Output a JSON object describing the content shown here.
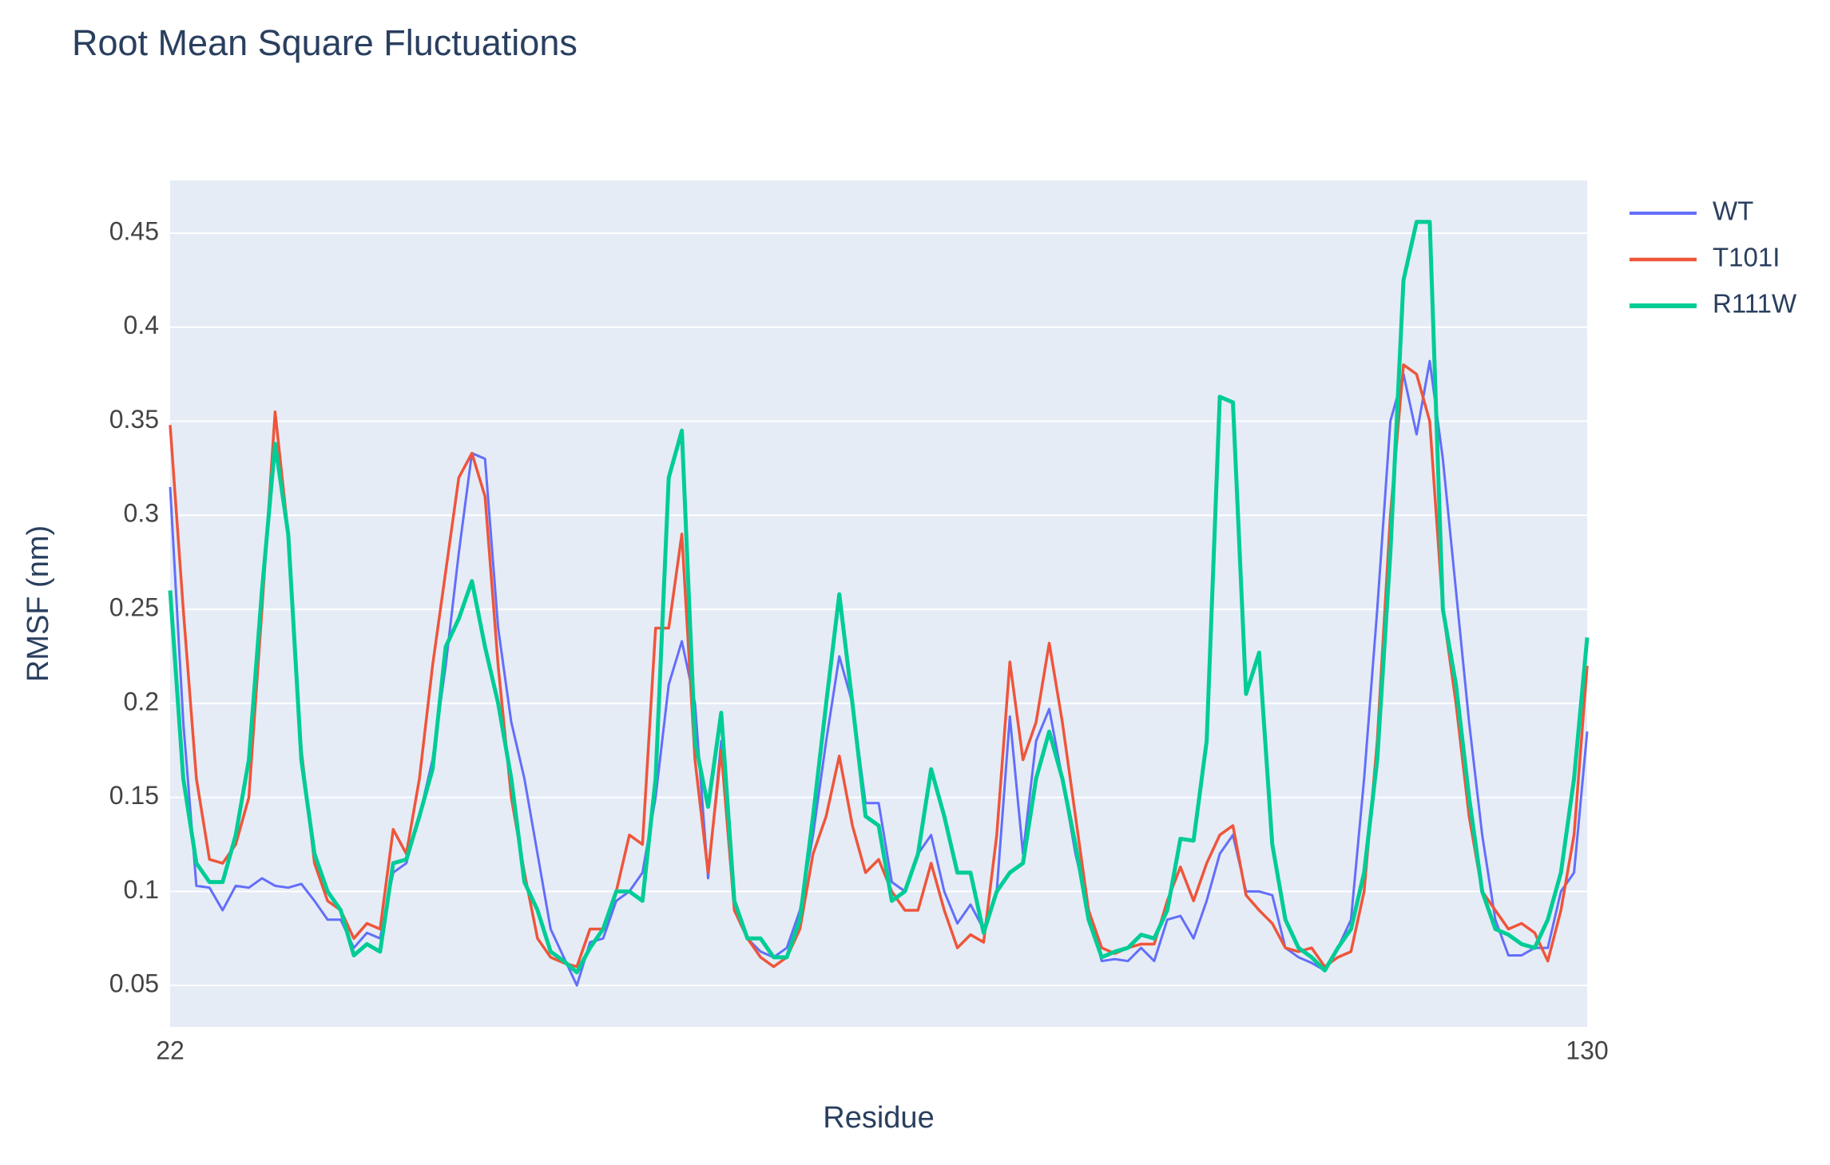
{
  "chart_data": {
    "type": "line",
    "title": "Root Mean Square Fluctuations",
    "x_label": "Residue",
    "y_label": "RMSF (nm)",
    "x": [
      22,
      23,
      24,
      25,
      26,
      27,
      28,
      29,
      30,
      31,
      32,
      33,
      34,
      35,
      36,
      37,
      38,
      39,
      40,
      41,
      42,
      43,
      44,
      45,
      46,
      47,
      48,
      49,
      50,
      51,
      52,
      53,
      54,
      55,
      56,
      57,
      58,
      59,
      60,
      61,
      62,
      63,
      64,
      65,
      66,
      67,
      68,
      69,
      70,
      71,
      72,
      73,
      74,
      75,
      76,
      77,
      78,
      79,
      80,
      81,
      82,
      83,
      84,
      85,
      86,
      87,
      88,
      89,
      90,
      91,
      92,
      93,
      94,
      95,
      96,
      97,
      98,
      99,
      100,
      101,
      102,
      103,
      104,
      105,
      106,
      107,
      108,
      109,
      110,
      111,
      112,
      113,
      114,
      115,
      116,
      117,
      118,
      119,
      120,
      121,
      122,
      123,
      124,
      125,
      126,
      127,
      128,
      129,
      130
    ],
    "series": [
      {
        "name": "WT",
        "color": "#636efa",
        "width": 3,
        "values": [
          0.315,
          0.19,
          0.103,
          0.102,
          0.09,
          0.103,
          0.102,
          0.107,
          0.103,
          0.102,
          0.104,
          0.095,
          0.085,
          0.085,
          0.07,
          0.078,
          0.075,
          0.11,
          0.115,
          0.14,
          0.17,
          0.22,
          0.28,
          0.333,
          0.33,
          0.24,
          0.19,
          0.16,
          0.12,
          0.08,
          0.065,
          0.05,
          0.073,
          0.075,
          0.095,
          0.1,
          0.11,
          0.15,
          0.21,
          0.233,
          0.2,
          0.107,
          0.18,
          0.09,
          0.075,
          0.068,
          0.065,
          0.07,
          0.09,
          0.13,
          0.18,
          0.225,
          0.2,
          0.147,
          0.147,
          0.105,
          0.1,
          0.12,
          0.13,
          0.1,
          0.083,
          0.093,
          0.08,
          0.1,
          0.193,
          0.12,
          0.18,
          0.197,
          0.16,
          0.12,
          0.09,
          0.063,
          0.064,
          0.063,
          0.07,
          0.063,
          0.085,
          0.087,
          0.075,
          0.095,
          0.12,
          0.13,
          0.1,
          0.1,
          0.098,
          0.07,
          0.065,
          0.062,
          0.058,
          0.07,
          0.085,
          0.16,
          0.25,
          0.35,
          0.375,
          0.343,
          0.382,
          0.33,
          0.26,
          0.19,
          0.13,
          0.085,
          0.066,
          0.066,
          0.07,
          0.07,
          0.1,
          0.11,
          0.185
        ]
      },
      {
        "name": "T101I",
        "color": "#ef553b",
        "width": 3.5,
        "values": [
          0.348,
          0.25,
          0.16,
          0.117,
          0.115,
          0.125,
          0.15,
          0.25,
          0.355,
          0.29,
          0.175,
          0.115,
          0.095,
          0.09,
          0.075,
          0.083,
          0.08,
          0.133,
          0.12,
          0.16,
          0.22,
          0.27,
          0.32,
          0.333,
          0.31,
          0.22,
          0.15,
          0.11,
          0.075,
          0.065,
          0.062,
          0.06,
          0.08,
          0.08,
          0.1,
          0.13,
          0.125,
          0.24,
          0.24,
          0.29,
          0.17,
          0.11,
          0.175,
          0.09,
          0.075,
          0.065,
          0.06,
          0.065,
          0.08,
          0.12,
          0.14,
          0.172,
          0.135,
          0.11,
          0.117,
          0.1,
          0.09,
          0.09,
          0.115,
          0.09,
          0.07,
          0.077,
          0.073,
          0.13,
          0.222,
          0.17,
          0.19,
          0.232,
          0.19,
          0.14,
          0.09,
          0.07,
          0.067,
          0.07,
          0.072,
          0.072,
          0.095,
          0.113,
          0.095,
          0.115,
          0.13,
          0.135,
          0.098,
          0.09,
          0.083,
          0.07,
          0.068,
          0.07,
          0.06,
          0.065,
          0.068,
          0.1,
          0.18,
          0.3,
          0.38,
          0.375,
          0.35,
          0.25,
          0.2,
          0.14,
          0.1,
          0.09,
          0.08,
          0.083,
          0.078,
          0.063,
          0.09,
          0.13,
          0.22
        ]
      },
      {
        "name": "R111W",
        "color": "#00cc96",
        "width": 5,
        "values": [
          0.26,
          0.16,
          0.115,
          0.105,
          0.105,
          0.13,
          0.17,
          0.26,
          0.338,
          0.29,
          0.17,
          0.12,
          0.1,
          0.09,
          0.066,
          0.072,
          0.068,
          0.115,
          0.117,
          0.14,
          0.165,
          0.23,
          0.245,
          0.265,
          0.23,
          0.2,
          0.16,
          0.105,
          0.09,
          0.068,
          0.063,
          0.057,
          0.07,
          0.08,
          0.1,
          0.1,
          0.095,
          0.16,
          0.32,
          0.345,
          0.18,
          0.145,
          0.195,
          0.095,
          0.075,
          0.075,
          0.065,
          0.065,
          0.085,
          0.14,
          0.2,
          0.258,
          0.2,
          0.14,
          0.135,
          0.095,
          0.1,
          0.12,
          0.165,
          0.14,
          0.11,
          0.11,
          0.078,
          0.1,
          0.11,
          0.115,
          0.16,
          0.185,
          0.16,
          0.125,
          0.085,
          0.065,
          0.068,
          0.07,
          0.077,
          0.075,
          0.09,
          0.128,
          0.127,
          0.18,
          0.363,
          0.36,
          0.205,
          0.227,
          0.125,
          0.085,
          0.07,
          0.065,
          0.058,
          0.07,
          0.08,
          0.11,
          0.17,
          0.28,
          0.425,
          0.456,
          0.456,
          0.25,
          0.21,
          0.15,
          0.1,
          0.08,
          0.077,
          0.072,
          0.07,
          0.085,
          0.11,
          0.16,
          0.235
        ]
      }
    ],
    "xlim": [
      22,
      130
    ],
    "xticks": [
      22,
      130
    ],
    "ylim": [
      0.028,
      0.478
    ],
    "yticks": [
      0.05,
      0.1,
      0.15,
      0.2,
      0.25,
      0.3,
      0.35,
      0.4,
      0.45
    ],
    "grid": true,
    "legend": "right"
  }
}
